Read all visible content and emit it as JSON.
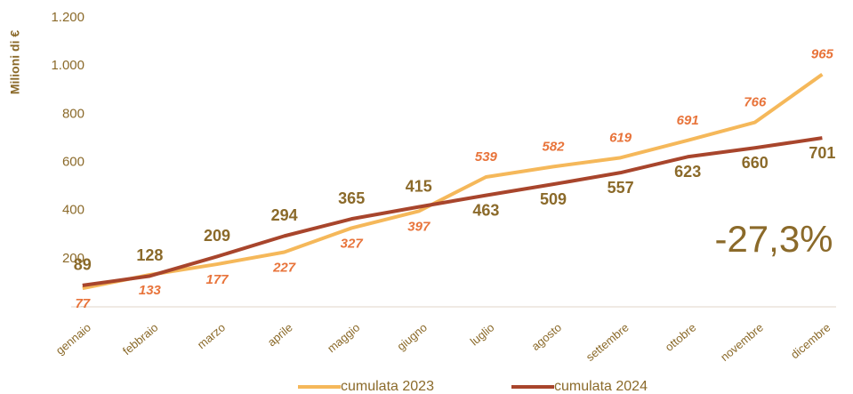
{
  "chart_data": {
    "type": "line",
    "y_label": "Milioni di €",
    "categories": [
      "gennaio",
      "febbraio",
      "marzo",
      "aprile",
      "maggio",
      "giugno",
      "luglio",
      "agosto",
      "settembre",
      "ottobre",
      "novembre",
      "dicembre"
    ],
    "series": [
      {
        "name": "cumulata 2023",
        "color": "#f5b85a",
        "values": [
          77,
          133,
          177,
          227,
          327,
          397,
          539,
          582,
          619,
          691,
          766,
          965
        ]
      },
      {
        "name": "cumulata 2024",
        "color": "#a8452c",
        "values": [
          89,
          128,
          209,
          294,
          365,
          415,
          463,
          509,
          557,
          623,
          660,
          701
        ]
      }
    ],
    "ylim": [
      0,
      1200
    ],
    "yticks": [
      {
        "value": 0,
        "label": "-"
      },
      200,
      400,
      600,
      800,
      {
        "value": 1000,
        "label": "1.000"
      },
      {
        "value": 1200,
        "label": "1.200"
      }
    ],
    "annotation": "-27,3%",
    "legend": "bottom"
  }
}
